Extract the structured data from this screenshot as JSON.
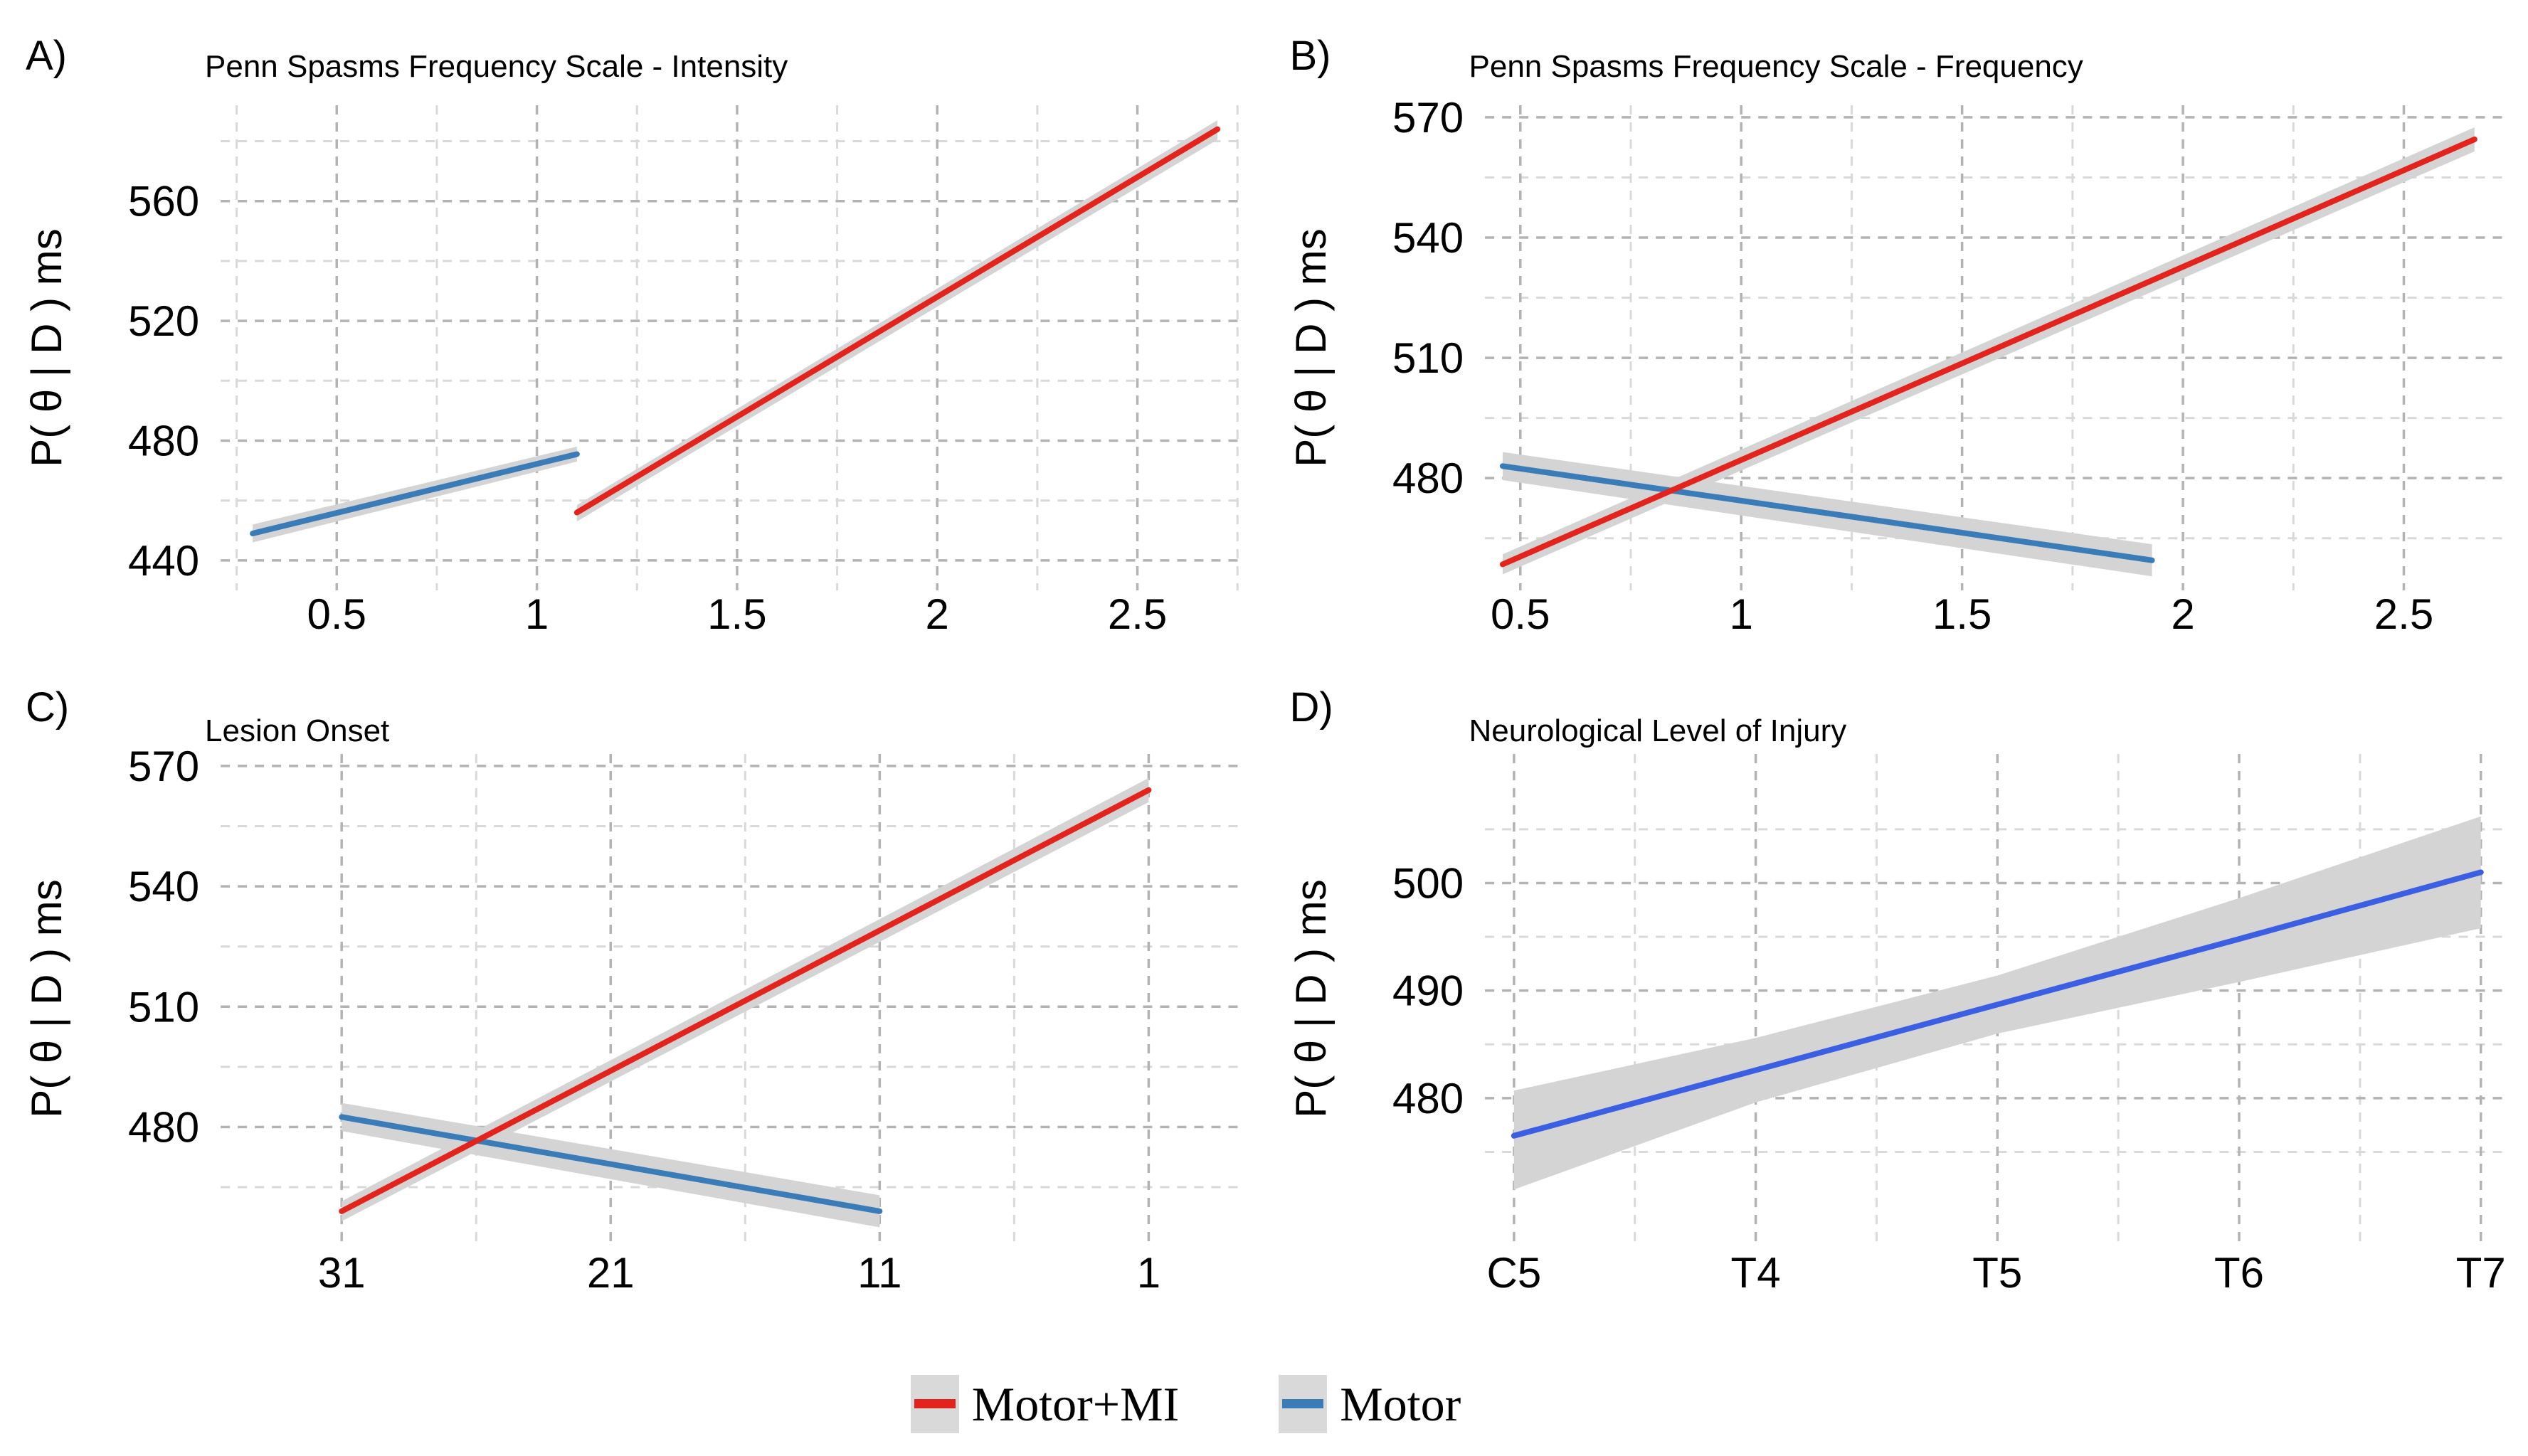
{
  "colors": {
    "motor_mi_red": "#e3241d",
    "motor_steel_blue": "#3a7cb8",
    "nli_royal_blue": "#3b5fe2",
    "confidence_band_grey": "#d4d4d4",
    "legend_swatch_grey": "#d9d9d9",
    "grid_major_grey": "#b3b3b3",
    "grid_minor_grey": "#d9d9d9",
    "background": "#ffffff"
  },
  "legend": {
    "swatch_fill": "#d9d9d9",
    "items": [
      {
        "label": "Motor+MI",
        "color": "#e3241d"
      },
      {
        "label": "Motor",
        "color": "#3a7cb8"
      }
    ]
  },
  "chart_data": [
    {
      "type": "line",
      "panel_letter": "A)",
      "title": "Penn Spasms Frequency Scale - Intensity",
      "ylabel": "P( θ | D ) ms",
      "xlabel": "",
      "xlim": [
        0.21,
        2.77
      ],
      "ylim": [
        430,
        592
      ],
      "xticks": [
        0.5,
        1,
        1.5,
        2,
        2.5
      ],
      "xtick_labels": [
        "0.5",
        "1",
        "1.5",
        "2",
        "2.5"
      ],
      "xminor": [
        0.25,
        0.75,
        1.25,
        1.75,
        2.25,
        2.75
      ],
      "yticks": [
        440,
        480,
        520,
        560
      ],
      "ytick_labels": [
        "440",
        "480",
        "520",
        "560"
      ],
      "yminor": [
        460,
        500,
        540,
        580
      ],
      "grid": "dashed",
      "legend_position": "bottom",
      "series": [
        {
          "name": "Motor+MI",
          "color": "#e3241d",
          "x": [
            1.1,
            2.7
          ],
          "y": [
            456,
            584
          ],
          "band_lower": [
            453,
            580.5
          ],
          "band_upper": [
            458.5,
            587
          ]
        },
        {
          "name": "Motor",
          "color": "#3a7cb8",
          "x": [
            0.29,
            1.1
          ],
          "y": [
            449,
            475.5
          ],
          "band_lower": [
            446,
            473
          ],
          "band_upper": [
            452,
            478
          ]
        }
      ]
    },
    {
      "type": "line",
      "panel_letter": "B)",
      "title": "Penn Spasms Frequency Scale - Frequency",
      "ylabel": "P( θ | D ) ms",
      "xlabel": "",
      "xlim": [
        0.42,
        2.74
      ],
      "ylim": [
        452,
        573
      ],
      "xticks": [
        0.5,
        1,
        1.5,
        2,
        2.5
      ],
      "xtick_labels": [
        "0.5",
        "1",
        "1.5",
        "2",
        "2.5"
      ],
      "xminor": [
        0.75,
        1.25,
        1.75,
        2.25
      ],
      "yticks": [
        480,
        510,
        540,
        570
      ],
      "ytick_labels": [
        "480",
        "510",
        "540",
        "570"
      ],
      "yminor": [
        465,
        495,
        525,
        555
      ],
      "grid": "dashed",
      "legend_position": "bottom",
      "series": [
        {
          "name": "Motor+MI",
          "color": "#e3241d",
          "x": [
            0.46,
            2.66
          ],
          "y": [
            458.5,
            564.5
          ],
          "band_lower": [
            456,
            561.5
          ],
          "band_upper": [
            461,
            567.5
          ]
        },
        {
          "name": "Motor",
          "color": "#3a7cb8",
          "x": [
            0.46,
            1.93
          ],
          "y": [
            483,
            459.5
          ],
          "band_lower": [
            479.5,
            455.5
          ],
          "band_upper": [
            486.5,
            463.5
          ]
        }
      ]
    },
    {
      "type": "line",
      "panel_letter": "C)",
      "title": "Lesion Onset",
      "ylabel": "P( θ | D ) ms",
      "xlabel": "",
      "x_axis_reversed": true,
      "xlim": [
        35.5,
        -2.6
      ],
      "ylim": [
        451,
        573
      ],
      "xticks": [
        31,
        21,
        11,
        1
      ],
      "xtick_labels": [
        "31",
        "21",
        "11",
        "1"
      ],
      "xminor": [
        26,
        16,
        6
      ],
      "yticks": [
        480,
        510,
        540,
        570
      ],
      "ytick_labels": [
        "480",
        "510",
        "540",
        "570"
      ],
      "yminor": [
        465,
        495,
        525,
        555
      ],
      "grid": "dashed",
      "legend_position": "bottom",
      "series": [
        {
          "name": "Motor+MI",
          "color": "#e3241d",
          "x": [
            31,
            1
          ],
          "y": [
            459,
            564
          ],
          "band_lower": [
            456.5,
            561
          ],
          "band_upper": [
            461.5,
            567
          ]
        },
        {
          "name": "Motor",
          "color": "#3a7cb8",
          "x": [
            31,
            11
          ],
          "y": [
            482.5,
            459
          ],
          "band_lower": [
            479,
            455
          ],
          "band_upper": [
            486,
            463
          ]
        }
      ]
    },
    {
      "type": "line",
      "panel_letter": "D)",
      "title": "Neurological Level of Injury",
      "ylabel": "P( θ | D ) ms",
      "xlabel": "",
      "x_categorical": true,
      "xlim": [
        0.88,
        5.12
      ],
      "ylim": [
        466.5,
        512
      ],
      "xticks": [
        1,
        2,
        3,
        4,
        5
      ],
      "xtick_labels": [
        "C5",
        "T4",
        "T5",
        "T6",
        "T7"
      ],
      "xminor": [
        1.5,
        2.5,
        3.5,
        4.5
      ],
      "yticks": [
        480,
        490,
        500
      ],
      "ytick_labels": [
        "480",
        "490",
        "500"
      ],
      "yminor": [
        475,
        485,
        495,
        505
      ],
      "grid": "dashed",
      "legend_position": "bottom",
      "series": [
        {
          "name": "",
          "color": "#3b5fe2",
          "x": [
            1,
            2,
            3,
            4,
            5
          ],
          "y": [
            476.5,
            482.6,
            488.7,
            494.8,
            501
          ],
          "band_lower": [
            471.5,
            479.6,
            486,
            490.8,
            495.8
          ],
          "band_upper": [
            480.7,
            485.6,
            491.4,
            498.6,
            506.2
          ]
        }
      ]
    }
  ]
}
